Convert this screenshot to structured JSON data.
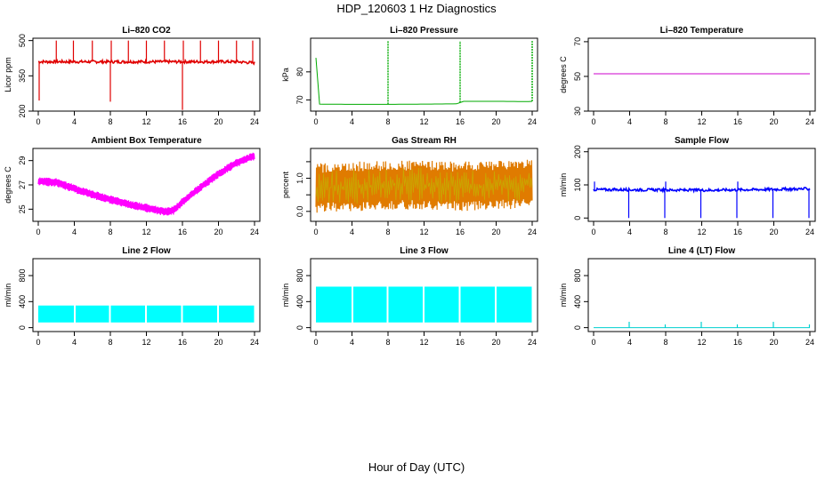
{
  "figure": {
    "title": "HDP_120603  1 Hz Diagnostics",
    "xlabel": "Hour of Day (UTC)"
  },
  "chart_data": [
    {
      "id": "co2",
      "type": "line",
      "title": "Li–820 CO2",
      "ylabel": "Licor ppm",
      "xlim": [
        0,
        24
      ],
      "xticks": [
        "0",
        "4",
        "8",
        "12",
        "16",
        "20",
        "24"
      ],
      "ylim": [
        200,
        510
      ],
      "yticks": [
        200,
        350,
        500
      ],
      "ytick_labels": [
        "200",
        "350",
        "500"
      ],
      "color": "#e00000",
      "style": "noisy",
      "x": [
        0,
        2,
        4,
        6,
        8,
        10,
        12,
        14,
        16,
        18,
        20,
        22,
        24
      ],
      "y": [
        410,
        410,
        410,
        410,
        410,
        410,
        410,
        410,
        410,
        410,
        410,
        410,
        405
      ],
      "noise": 6,
      "spikes": [
        {
          "x": 0.1,
          "y": 245
        },
        {
          "x": 2.0,
          "y": 500
        },
        {
          "x": 3.9,
          "y": 500
        },
        {
          "x": 6.0,
          "y": 500
        },
        {
          "x": 8.0,
          "y": 240
        },
        {
          "x": 8.1,
          "y": 500
        },
        {
          "x": 10.0,
          "y": 500
        },
        {
          "x": 12.0,
          "y": 500
        },
        {
          "x": 14.0,
          "y": 500
        },
        {
          "x": 16.0,
          "y": 205
        },
        {
          "x": 16.1,
          "y": 500
        },
        {
          "x": 18.0,
          "y": 500
        },
        {
          "x": 20.0,
          "y": 500
        },
        {
          "x": 22.0,
          "y": 500
        },
        {
          "x": 23.8,
          "y": 500
        }
      ]
    },
    {
      "id": "pressure",
      "type": "line",
      "title": "Li–820 Pressure",
      "ylabel": "kPa",
      "xlim": [
        0,
        24
      ],
      "xticks": [
        "0",
        "4",
        "8",
        "12",
        "16",
        "20",
        "24"
      ],
      "ylim": [
        66,
        92
      ],
      "yticks": [
        70,
        80
      ],
      "ytick_labels": [
        "70",
        "80"
      ],
      "color": "#00aa00",
      "style": "line",
      "x": [
        0,
        0.1,
        0.25,
        4,
        8,
        12,
        15.9,
        16.1,
        20,
        23.9,
        24
      ],
      "y": [
        85,
        75,
        68.5,
        68.4,
        68.4,
        68.5,
        68.6,
        69.5,
        69.5,
        69.4,
        69.5
      ],
      "noise": 0,
      "spikes": [
        {
          "x": 8.0,
          "y": 91
        },
        {
          "x": 16.0,
          "y": 91
        },
        {
          "x": 24.0,
          "y": 91
        }
      ]
    },
    {
      "id": "licor-temp",
      "type": "line",
      "title": "Li–820 Temperature",
      "ylabel": "degrees C",
      "xlim": [
        0,
        24
      ],
      "xticks": [
        "0",
        "4",
        "8",
        "12",
        "16",
        "20",
        "24"
      ],
      "ylim": [
        30,
        72
      ],
      "yticks": [
        30,
        50,
        70
      ],
      "ytick_labels": [
        "30",
        "50",
        "70"
      ],
      "color": "#cc00cc",
      "style": "line",
      "x": [
        0,
        24
      ],
      "y": [
        51.5,
        51.5
      ],
      "noise": 0,
      "spikes": []
    },
    {
      "id": "box-temp",
      "type": "line",
      "title": "Ambient Box Temperature",
      "ylabel": "degrees C",
      "xlim": [
        0,
        24
      ],
      "xticks": [
        "0",
        "4",
        "8",
        "12",
        "16",
        "20",
        "24"
      ],
      "ylim": [
        24,
        30
      ],
      "yticks": [
        25,
        27,
        29
      ],
      "ytick_labels": [
        "25",
        "27",
        "29"
      ],
      "color": "#ff00ff",
      "style": "band",
      "x": [
        0,
        2,
        4,
        6,
        8,
        10,
        12,
        14,
        15,
        16,
        18,
        20,
        22,
        24
      ],
      "y": [
        27.3,
        27.2,
        26.7,
        26.2,
        25.8,
        25.4,
        25.1,
        24.8,
        24.9,
        25.6,
        26.8,
        27.9,
        28.8,
        29.4
      ],
      "noise": 0.35,
      "spikes": []
    },
    {
      "id": "rh",
      "type": "line",
      "title": "Gas Stream RH",
      "ylabel": "percent",
      "xlim": [
        0,
        24
      ],
      "xticks": [
        "0",
        "4",
        "8",
        "12",
        "16",
        "20",
        "24"
      ],
      "ylim": [
        -0.3,
        1.9
      ],
      "yticks": [
        0,
        0.5,
        1.0,
        1.5
      ],
      "ytick_labels": [
        "0.0",
        "",
        "1.0",
        ""
      ],
      "color": "#e07b00",
      "fill2": "#c9a800",
      "style": "band",
      "x": [
        0,
        4,
        8,
        12,
        16,
        20,
        24
      ],
      "y": [
        0.7,
        0.75,
        0.78,
        0.8,
        0.75,
        0.8,
        0.85
      ],
      "noise": 0.75,
      "spikes": []
    },
    {
      "id": "sample-flow",
      "type": "line",
      "title": "Sample Flow",
      "ylabel": "ml/min",
      "xlim": [
        0,
        24
      ],
      "xticks": [
        "0",
        "4",
        "8",
        "12",
        "16",
        "20",
        "24"
      ],
      "ylim": [
        -10,
        210
      ],
      "yticks": [
        0,
        100,
        200
      ],
      "ytick_labels": [
        "0",
        "100",
        "200"
      ],
      "color": "#0000ff",
      "style": "noisy",
      "x": [
        0,
        6,
        12,
        18,
        24
      ],
      "y": [
        86,
        85,
        84,
        86,
        88
      ],
      "noise": 4,
      "spikes": [
        {
          "x": 0.1,
          "y": 110
        },
        {
          "x": 3.9,
          "y": 0
        },
        {
          "x": 7.9,
          "y": 0
        },
        {
          "x": 8.0,
          "y": 110
        },
        {
          "x": 11.9,
          "y": 0
        },
        {
          "x": 15.9,
          "y": 0
        },
        {
          "x": 16.0,
          "y": 110
        },
        {
          "x": 19.9,
          "y": 0
        },
        {
          "x": 23.9,
          "y": 0
        }
      ]
    },
    {
      "id": "line2-flow",
      "type": "line",
      "title": "Line 2 Flow",
      "ylabel": "ml/min",
      "xlim": [
        0,
        24
      ],
      "xticks": [
        "0",
        "4",
        "8",
        "12",
        "16",
        "20",
        "24"
      ],
      "ylim": [
        -60,
        1060
      ],
      "yticks": [
        0,
        400,
        800
      ],
      "ytick_labels": [
        "0",
        "400",
        "800"
      ],
      "color": "#00ffff",
      "style": "block",
      "x": [
        0,
        24
      ],
      "y": [
        80,
        340
      ],
      "noise": 0,
      "gaps": [
        4.0,
        7.9,
        11.9,
        15.9,
        19.9
      ],
      "spikes": []
    },
    {
      "id": "line3-flow",
      "type": "line",
      "title": "Line 3 Flow",
      "ylabel": "ml/min",
      "xlim": [
        0,
        24
      ],
      "xticks": [
        "0",
        "4",
        "8",
        "12",
        "16",
        "20",
        "24"
      ],
      "ylim": [
        -60,
        1060
      ],
      "yticks": [
        0,
        400,
        800
      ],
      "ytick_labels": [
        "0",
        "400",
        "800"
      ],
      "color": "#00ffff",
      "style": "block",
      "x": [
        0,
        24
      ],
      "y": [
        80,
        630
      ],
      "noise": 0,
      "gaps": [
        4.0,
        7.9,
        11.9,
        15.9,
        19.9
      ],
      "spikes": []
    },
    {
      "id": "line4-flow",
      "type": "line",
      "title": "Line 4 (LT) Flow",
      "ylabel": "ml/min",
      "xlim": [
        0,
        24
      ],
      "xticks": [
        "0",
        "4",
        "8",
        "12",
        "16",
        "20",
        "24"
      ],
      "ylim": [
        -60,
        1060
      ],
      "yticks": [
        0,
        400,
        800
      ],
      "ytick_labels": [
        "0",
        "400",
        "800"
      ],
      "color": "#00d0d0",
      "style": "line",
      "x": [
        0,
        24
      ],
      "y": [
        0,
        0
      ],
      "noise": 0,
      "spikes": [
        {
          "x": 3.95,
          "y": 90
        },
        {
          "x": 7.95,
          "y": 50
        },
        {
          "x": 11.95,
          "y": 90
        },
        {
          "x": 15.95,
          "y": 50
        },
        {
          "x": 19.95,
          "y": 90
        },
        {
          "x": 23.95,
          "y": 50
        }
      ]
    }
  ]
}
